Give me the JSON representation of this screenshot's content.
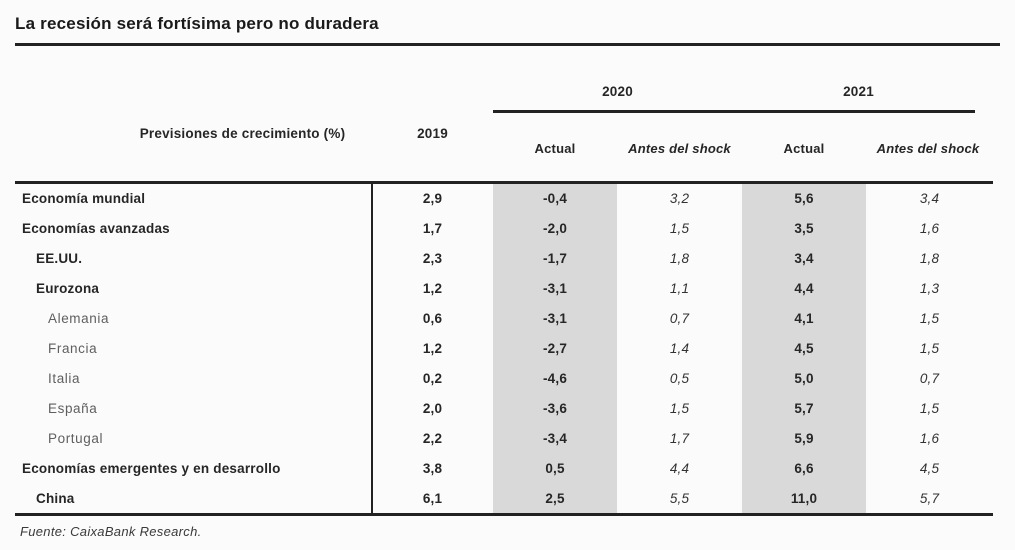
{
  "title": "La recesión será fortísima pero no duradera",
  "source": "Fuente: CaixaBank Research.",
  "header": {
    "row_label": "Previsiones de crecimiento (%)",
    "col_2019": "2019",
    "groups": [
      {
        "label": "2020",
        "subcols": [
          "Actual",
          "Antes del shock"
        ]
      },
      {
        "label": "2021",
        "subcols": [
          "Actual",
          "Antes del shock"
        ]
      }
    ]
  },
  "colors": {
    "shaded_column": "#d9d9d9",
    "rule": "#222222"
  },
  "chart_data": {
    "type": "table",
    "title": "La recesión será fortísima pero no duradera",
    "row_header": "Previsiones de crecimiento (%)",
    "columns": [
      "2019",
      "2020 Actual",
      "2020 Antes del shock",
      "2021 Actual",
      "2021 Antes del shock"
    ],
    "shaded_columns": [
      "2020 Actual",
      "2021 Actual"
    ],
    "rows": [
      {
        "label": "Economía mundial",
        "indent": 0,
        "values": [
          "2,9",
          "-0,4",
          "3,2",
          "5,6",
          "3,4"
        ]
      },
      {
        "label": "Economías avanzadas",
        "indent": 0,
        "values": [
          "1,7",
          "-2,0",
          "1,5",
          "3,5",
          "1,6"
        ]
      },
      {
        "label": "EE.UU.",
        "indent": 1,
        "values": [
          "2,3",
          "-1,7",
          "1,8",
          "3,4",
          "1,8"
        ]
      },
      {
        "label": "Eurozona",
        "indent": 1,
        "values": [
          "1,2",
          "-3,1",
          "1,1",
          "4,4",
          "1,3"
        ]
      },
      {
        "label": "Alemania",
        "indent": 2,
        "values": [
          "0,6",
          "-3,1",
          "0,7",
          "4,1",
          "1,5"
        ]
      },
      {
        "label": "Francia",
        "indent": 2,
        "values": [
          "1,2",
          "-2,7",
          "1,4",
          "4,5",
          "1,5"
        ]
      },
      {
        "label": "Italia",
        "indent": 2,
        "values": [
          "0,2",
          "-4,6",
          "0,5",
          "5,0",
          "0,7"
        ]
      },
      {
        "label": "España",
        "indent": 2,
        "values": [
          "2,0",
          "-3,6",
          "1,5",
          "5,7",
          "1,5"
        ]
      },
      {
        "label": "Portugal",
        "indent": 2,
        "values": [
          "2,2",
          "-3,4",
          "1,7",
          "5,9",
          "1,6"
        ]
      },
      {
        "label": "Economías emergentes y en desarrollo",
        "indent": 0,
        "values": [
          "3,8",
          "0,5",
          "4,4",
          "6,6",
          "4,5"
        ]
      },
      {
        "label": "China",
        "indent": 1,
        "values": [
          "6,1",
          "2,5",
          "5,5",
          "11,0",
          "5,7"
        ]
      }
    ],
    "source": "Fuente: CaixaBank Research."
  }
}
